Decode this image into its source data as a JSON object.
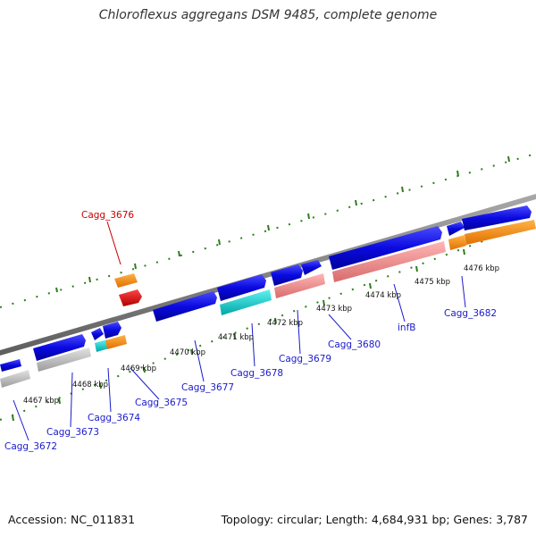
{
  "title": "Chloroflexus aggregans DSM 9485, complete genome",
  "footer": {
    "accession": "Accession: NC_011831",
    "topology": "Topology: circular; Length: 4,684,931 bp; Genes: 3,787"
  },
  "colors": {
    "backbone": "#7a7a7a",
    "tick": "#2e7d1e",
    "label_blue": "#1a1acc",
    "label_red": "#cc0000"
  },
  "scale_labels": [
    {
      "id": "kbp-4467",
      "text": "4467 kbp"
    },
    {
      "id": "kbp-4468",
      "text": "4468 kbp"
    },
    {
      "id": "kbp-4469",
      "text": "4469 kbp"
    },
    {
      "id": "kbp-4470",
      "text": "4470 kbp"
    },
    {
      "id": "kbp-4471",
      "text": "4471 kbp"
    },
    {
      "id": "kbp-4472",
      "text": "4472 kbp"
    },
    {
      "id": "kbp-4473",
      "text": "4473 kbp"
    },
    {
      "id": "kbp-4474",
      "text": "4474 kbp"
    },
    {
      "id": "kbp-4475",
      "text": "4475 kbp"
    },
    {
      "id": "kbp-4476",
      "text": "4476 kbp"
    }
  ],
  "gene_labels": [
    {
      "id": "cagg-3676",
      "text": "Cagg_3676",
      "color": "red"
    },
    {
      "id": "cagg-3672",
      "text": "Cagg_3672",
      "color": "blue"
    },
    {
      "id": "cagg-3673",
      "text": "Cagg_3673",
      "color": "blue"
    },
    {
      "id": "cagg-3674",
      "text": "Cagg_3674",
      "color": "blue"
    },
    {
      "id": "cagg-3675",
      "text": "Cagg_3675",
      "color": "blue"
    },
    {
      "id": "cagg-3677",
      "text": "Cagg_3677",
      "color": "blue"
    },
    {
      "id": "cagg-3678",
      "text": "Cagg_3678",
      "color": "blue"
    },
    {
      "id": "cagg-3679",
      "text": "Cagg_3679",
      "color": "blue"
    },
    {
      "id": "cagg-3680",
      "text": "Cagg_3680",
      "color": "blue"
    },
    {
      "id": "infb",
      "text": "infB",
      "color": "blue"
    },
    {
      "id": "cagg-3682",
      "text": "Cagg_3682",
      "color": "blue"
    }
  ]
}
